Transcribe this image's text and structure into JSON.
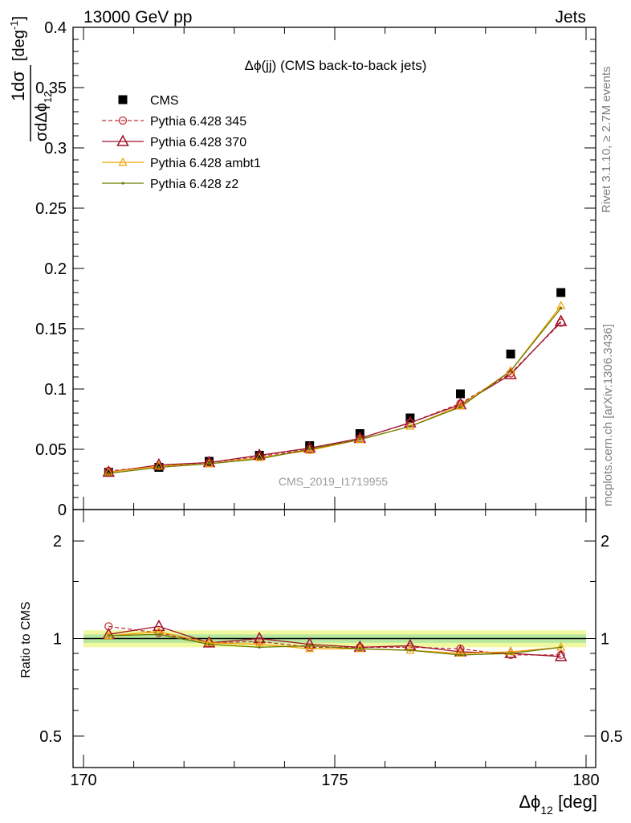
{
  "header": {
    "left": "13000 GeV pp",
    "right": "Jets"
  },
  "side_labels": {
    "rivet": "Rivet 3.1.10, ≥ 2.7M events",
    "source": "mcplots.cern.ch [arXiv:1306.3436]"
  },
  "watermark": "CMS_2019_I1719955",
  "chart_data": [
    {
      "type": "scatter",
      "panel": "main",
      "title": "Δϕ(jj) (CMS back-to-back jets)",
      "ylabel": "1/σ dσ/dΔϕ_12 [deg^-1]",
      "ylabel_parts": {
        "frac_num": "1",
        "frac_den": "σ",
        "d_num": "dσ",
        "d_den": "dΔϕ",
        "sub": "12",
        "unit_open": "[deg",
        "unit_exp": "-1",
        "unit_close": "]"
      },
      "xlim": [
        170,
        180
      ],
      "ylim": [
        0,
        0.4
      ],
      "x": [
        170.5,
        171.5,
        172.5,
        173.5,
        174.5,
        175.5,
        176.5,
        177.5,
        178.5,
        179.5
      ],
      "series": [
        {
          "name": "CMS",
          "color": "#000000",
          "marker": "square",
          "values": [
            0.031,
            0.035,
            0.04,
            0.045,
            0.053,
            0.063,
            0.076,
            0.096,
            0.129,
            0.18
          ]
        },
        {
          "name": "Pythia 6.428 345",
          "color": "#c0303a",
          "marker": "circle-open",
          "dashed": true,
          "values": [
            0.032,
            0.036,
            0.039,
            0.044,
            0.05,
            0.059,
            0.072,
            0.088,
            0.113,
            0.155
          ]
        },
        {
          "name": "Pythia 6.428 370",
          "color": "#a0102a",
          "marker": "triangle-open",
          "values": [
            0.031,
            0.037,
            0.039,
            0.045,
            0.051,
            0.059,
            0.072,
            0.087,
            0.112,
            0.156
          ]
        },
        {
          "name": "Pythia 6.428 ambt1",
          "color": "#f0a000",
          "marker": "triangle-open-small",
          "values": [
            0.031,
            0.036,
            0.038,
            0.043,
            0.049,
            0.058,
            0.069,
            0.086,
            0.115,
            0.169
          ]
        },
        {
          "name": "Pythia 6.428 z2",
          "color": "#6b7a00",
          "marker": "dot",
          "values": [
            0.03,
            0.035,
            0.038,
            0.042,
            0.05,
            0.058,
            0.069,
            0.085,
            0.115,
            0.167
          ]
        }
      ],
      "yticks": [
        {
          "v": 0,
          "l": "0"
        },
        {
          "v": 0.05,
          "l": "0.05"
        },
        {
          "v": 0.1,
          "l": "0.1"
        },
        {
          "v": 0.15,
          "l": "0.15"
        },
        {
          "v": 0.2,
          "l": "0.2"
        },
        {
          "v": 0.25,
          "l": "0.25"
        },
        {
          "v": 0.3,
          "l": "0.3"
        },
        {
          "v": 0.35,
          "l": "0.35"
        },
        {
          "v": 0.4,
          "l": "0.4"
        }
      ],
      "legend": "top-left"
    },
    {
      "type": "line",
      "panel": "ratio",
      "ylabel": "Ratio to CMS",
      "xlabel": "Δϕ_12 [deg]",
      "xlabel_parts": {
        "sym": "Δϕ",
        "sub": "12",
        "unit": " [deg]"
      },
      "scale": "log",
      "ylim": [
        0.4,
        2.5
      ],
      "xlim": [
        170,
        180
      ],
      "x": [
        170.5,
        171.5,
        172.5,
        173.5,
        174.5,
        175.5,
        176.5,
        177.5,
        178.5,
        179.5
      ],
      "band_inner": [
        0.97,
        1.03
      ],
      "band_outer": [
        0.94,
        1.06
      ],
      "band_colors": {
        "inner": "#b8e8a0",
        "outer": "#f0f8a0"
      },
      "series": [
        {
          "name": "Pythia 6.428 345",
          "color": "#c0303a",
          "values": [
            1.09,
            1.04,
            0.97,
            0.98,
            0.94,
            0.94,
            0.94,
            0.93,
            0.89,
            0.89
          ]
        },
        {
          "name": "Pythia 6.428 370",
          "color": "#a0102a",
          "values": [
            1.03,
            1.09,
            0.97,
            1.0,
            0.96,
            0.94,
            0.95,
            0.91,
            0.9,
            0.88
          ]
        },
        {
          "name": "Pythia 6.428 ambt1",
          "color": "#f0a000",
          "values": [
            1.02,
            1.05,
            0.97,
            0.96,
            0.93,
            0.93,
            0.92,
            0.9,
            0.91,
            0.94
          ]
        },
        {
          "name": "Pythia 6.428 z2",
          "color": "#6b7a00",
          "values": [
            1.02,
            1.03,
            0.96,
            0.94,
            0.95,
            0.93,
            0.92,
            0.89,
            0.9,
            0.94
          ]
        }
      ],
      "yticks": [
        {
          "v": 0.5,
          "l": "0.5"
        },
        {
          "v": 1,
          "l": "1"
        },
        {
          "v": 2,
          "l": "2"
        }
      ],
      "xticks": [
        {
          "v": 170,
          "l": "170"
        },
        {
          "v": 175,
          "l": "175"
        },
        {
          "v": 180,
          "l": "180"
        }
      ]
    }
  ]
}
